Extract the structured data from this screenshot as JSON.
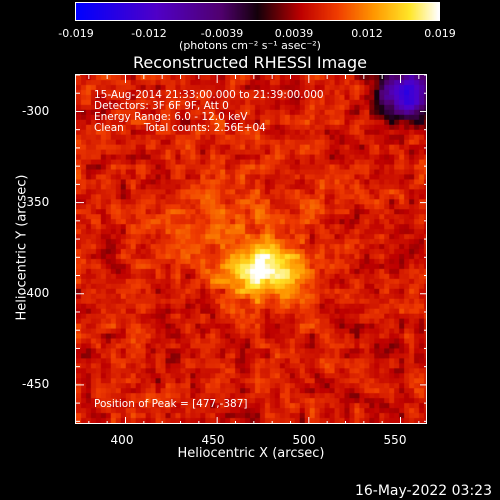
{
  "colorbar": {
    "tick_labels": [
      "-0.019",
      "-0.012",
      "-0.0039",
      "0.0039",
      "0.012",
      "0.019"
    ],
    "units_label": "(photons cm⁻² s⁻¹ asec⁻²)",
    "range": [
      -0.019,
      0.019
    ]
  },
  "annotations": {
    "line1": "15-Aug-2014 21:33:00.000 to 21:39:00.000",
    "line2": "Detectors: 3F 6F 9F, Att 0",
    "line3": "Energy Range: 6.0 - 12.0 keV",
    "line4": "Clean      Total counts: 2.56E+04",
    "peak": "Position of Peak = [477,-387]"
  },
  "footer": {
    "date": "16-May-2022 03:23"
  },
  "chart_data": {
    "type": "heatmap",
    "title": "Reconstructed RHESSI Image",
    "xlabel": "Heliocentric X (arcsec)",
    "ylabel": "Heliocentric Y (arcsec)",
    "xlim": [
      373,
      565
    ],
    "ylim": [
      -472,
      -280
    ],
    "xticks": [
      "400",
      "450",
      "500",
      "550"
    ],
    "yticks": [
      "-300",
      "-350",
      "-400",
      "-450"
    ],
    "peak": {
      "x": 477,
      "y": -387
    },
    "color_table": "red-temperature with blue/purple negatives"
  },
  "colors": {
    "background": "#000000",
    "foreground": "#ffffff"
  }
}
